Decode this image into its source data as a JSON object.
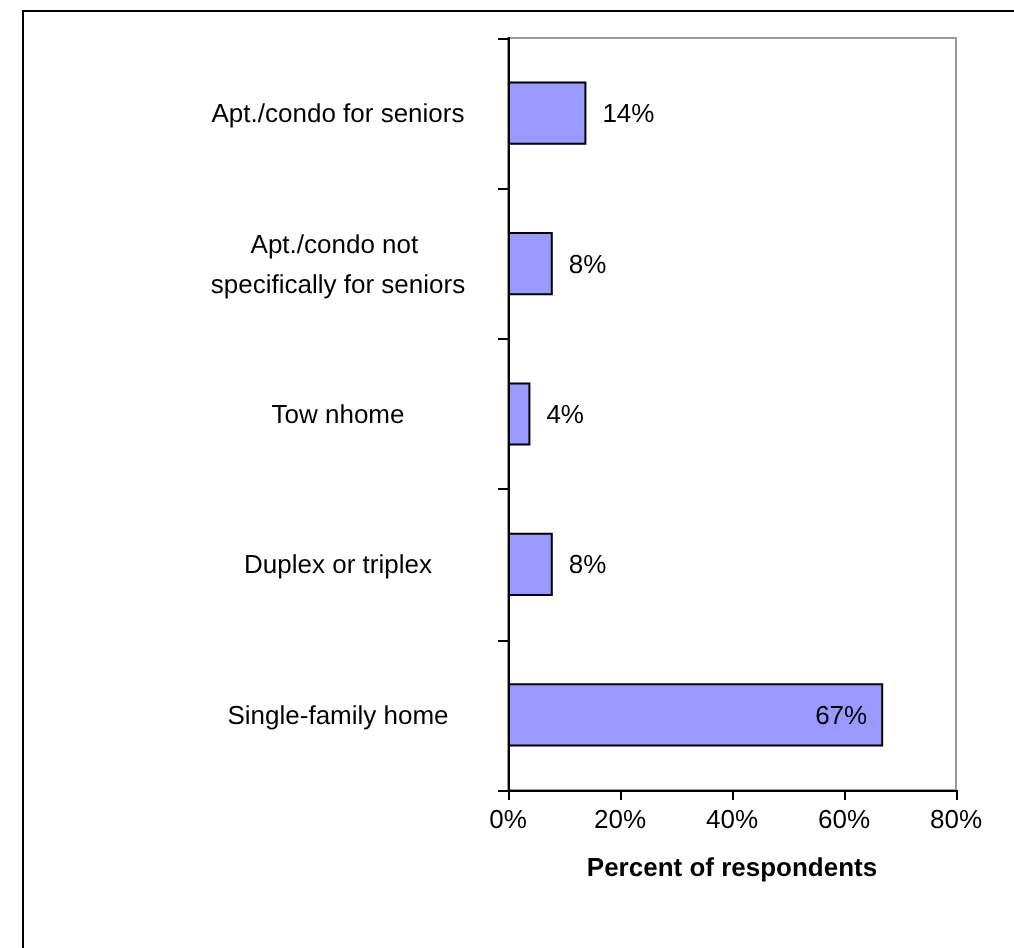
{
  "chart_data": {
    "type": "bar",
    "orientation": "horizontal",
    "xlabel": "Percent of respondents",
    "categories": [
      "Apt./condo for seniors",
      "Apt./condo not specifically for seniors",
      "Tow nhome",
      "Duplex or triplex",
      "Single-family home"
    ],
    "values": [
      14,
      8,
      4,
      8,
      67
    ],
    "color": "#9999ff",
    "value_labels": [
      "14%",
      "8%",
      "4%",
      "8%",
      "67%"
    ],
    "xlim": [
      0,
      80
    ],
    "xticks": [
      {
        "value": 0,
        "label": "0%"
      },
      {
        "value": 20,
        "label": "20%"
      },
      {
        "value": 40,
        "label": "40%"
      },
      {
        "value": 60,
        "label": "60%"
      },
      {
        "value": 80,
        "label": "80%"
      }
    ],
    "grid": false
  }
}
